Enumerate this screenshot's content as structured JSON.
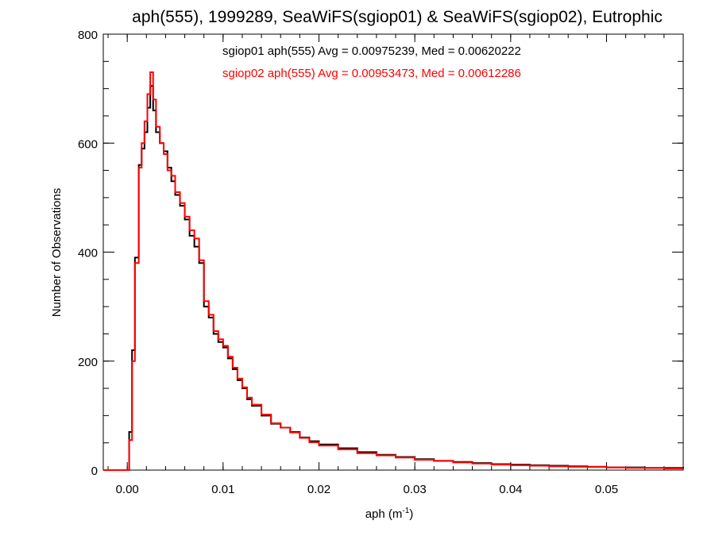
{
  "chart_data": {
    "type": "line",
    "step": true,
    "title": "aph(555), 1999289, SeaWiFS(sgiop01) & SeaWiFS(sgiop02), Eutrophic",
    "xlabel_main": "aph (m",
    "xlabel_sup": "-1",
    "xlabel_close": ")",
    "ylabel": "Number of Observations",
    "xlim": [
      -0.0025,
      0.058
    ],
    "ylim": [
      0,
      800
    ],
    "xticks": [
      {
        "value": 0.0,
        "label": "0.00"
      },
      {
        "value": 0.01,
        "label": "0.01"
      },
      {
        "value": 0.02,
        "label": "0.02"
      },
      {
        "value": 0.03,
        "label": "0.03"
      },
      {
        "value": 0.04,
        "label": "0.04"
      },
      {
        "value": 0.05,
        "label": "0.05"
      }
    ],
    "yticks": [
      {
        "value": 0,
        "label": "0"
      },
      {
        "value": 200,
        "label": "200"
      },
      {
        "value": 400,
        "label": "400"
      },
      {
        "value": 600,
        "label": "600"
      },
      {
        "value": 800,
        "label": "800"
      }
    ],
    "grid": false,
    "legend_position": "top-center",
    "series": [
      {
        "label": "sgiop01 aph(555) Avg = 0.00975239, Med = 0.00620222",
        "color": "#000000",
        "points": [
          [
            -0.0025,
            0
          ],
          [
            0.0,
            0
          ],
          [
            0.0002,
            70
          ],
          [
            0.0005,
            220
          ],
          [
            0.0008,
            390
          ],
          [
            0.0012,
            560
          ],
          [
            0.0015,
            590
          ],
          [
            0.0018,
            620
          ],
          [
            0.0021,
            665
          ],
          [
            0.0024,
            705
          ],
          [
            0.0027,
            660
          ],
          [
            0.003,
            620
          ],
          [
            0.0034,
            600
          ],
          [
            0.0038,
            585
          ],
          [
            0.0042,
            555
          ],
          [
            0.0046,
            530
          ],
          [
            0.005,
            505
          ],
          [
            0.0055,
            485
          ],
          [
            0.006,
            460
          ],
          [
            0.0065,
            430
          ],
          [
            0.007,
            410
          ],
          [
            0.0075,
            380
          ],
          [
            0.008,
            300
          ],
          [
            0.0085,
            280
          ],
          [
            0.009,
            250
          ],
          [
            0.0095,
            235
          ],
          [
            0.01,
            225
          ],
          [
            0.0105,
            205
          ],
          [
            0.011,
            185
          ],
          [
            0.0115,
            165
          ],
          [
            0.012,
            150
          ],
          [
            0.0125,
            130
          ],
          [
            0.013,
            118
          ],
          [
            0.014,
            100
          ],
          [
            0.015,
            85
          ],
          [
            0.016,
            78
          ],
          [
            0.017,
            70
          ],
          [
            0.018,
            60
          ],
          [
            0.019,
            53
          ],
          [
            0.02,
            47
          ],
          [
            0.022,
            40
          ],
          [
            0.024,
            33
          ],
          [
            0.026,
            28
          ],
          [
            0.028,
            24
          ],
          [
            0.03,
            20
          ],
          [
            0.032,
            17
          ],
          [
            0.034,
            15
          ],
          [
            0.036,
            13
          ],
          [
            0.038,
            11
          ],
          [
            0.04,
            10
          ],
          [
            0.042,
            9
          ],
          [
            0.044,
            8
          ],
          [
            0.046,
            7
          ],
          [
            0.048,
            6
          ],
          [
            0.05,
            5
          ],
          [
            0.052,
            5
          ],
          [
            0.054,
            4
          ],
          [
            0.056,
            4
          ],
          [
            0.058,
            3
          ]
        ]
      },
      {
        "label": "sgiop02 aph(555) Avg = 0.00953473, Med = 0.00612286",
        "color": "#ff0000",
        "points": [
          [
            -0.0025,
            0
          ],
          [
            0.0,
            0
          ],
          [
            0.0002,
            55
          ],
          [
            0.0005,
            200
          ],
          [
            0.0008,
            380
          ],
          [
            0.0012,
            555
          ],
          [
            0.0015,
            600
          ],
          [
            0.0018,
            640
          ],
          [
            0.0021,
            690
          ],
          [
            0.0024,
            730
          ],
          [
            0.0027,
            680
          ],
          [
            0.003,
            630
          ],
          [
            0.0034,
            600
          ],
          [
            0.0038,
            580
          ],
          [
            0.0042,
            550
          ],
          [
            0.0046,
            540
          ],
          [
            0.005,
            510
          ],
          [
            0.0055,
            490
          ],
          [
            0.006,
            465
          ],
          [
            0.0065,
            440
          ],
          [
            0.007,
            425
          ],
          [
            0.0075,
            385
          ],
          [
            0.008,
            310
          ],
          [
            0.0085,
            285
          ],
          [
            0.009,
            255
          ],
          [
            0.0095,
            240
          ],
          [
            0.01,
            228
          ],
          [
            0.0105,
            208
          ],
          [
            0.011,
            188
          ],
          [
            0.0115,
            168
          ],
          [
            0.012,
            152
          ],
          [
            0.0125,
            133
          ],
          [
            0.013,
            120
          ],
          [
            0.014,
            102
          ],
          [
            0.015,
            86
          ],
          [
            0.016,
            78
          ],
          [
            0.017,
            69
          ],
          [
            0.018,
            59
          ],
          [
            0.019,
            51
          ],
          [
            0.02,
            45
          ],
          [
            0.022,
            38
          ],
          [
            0.024,
            31
          ],
          [
            0.026,
            27
          ],
          [
            0.028,
            23
          ],
          [
            0.03,
            19
          ],
          [
            0.032,
            17
          ],
          [
            0.034,
            14
          ],
          [
            0.036,
            12
          ],
          [
            0.038,
            10
          ],
          [
            0.04,
            9
          ],
          [
            0.042,
            8
          ],
          [
            0.044,
            7
          ],
          [
            0.046,
            6
          ],
          [
            0.048,
            6
          ],
          [
            0.05,
            5
          ],
          [
            0.052,
            4
          ],
          [
            0.054,
            4
          ],
          [
            0.056,
            3
          ],
          [
            0.058,
            3
          ]
        ]
      }
    ]
  }
}
